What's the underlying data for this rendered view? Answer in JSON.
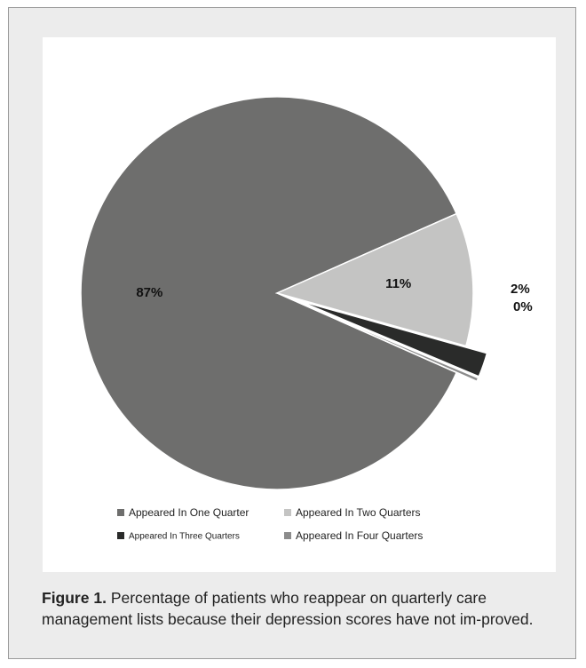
{
  "figure": {
    "label": "Figure 1.",
    "caption": "Percentage of patients who reappear on quarterly care management lists because their depression scores have not im-proved."
  },
  "chart_data": {
    "type": "pie",
    "categories": [
      "Appeared In One Quarter",
      "Appeared In Two Quarters",
      "Appeared In Three Quarters",
      "Appeared In Four Quarters"
    ],
    "values": [
      87,
      11,
      2,
      0.3
    ],
    "data_labels": [
      "87%",
      "11%",
      "2%",
      "0%"
    ],
    "colors": [
      "#6e6e6d",
      "#c4c4c3",
      "#2a2b2a",
      "#8c8c8c"
    ],
    "exploded": [
      false,
      false,
      true,
      true
    ],
    "legend_position": "bottom"
  }
}
